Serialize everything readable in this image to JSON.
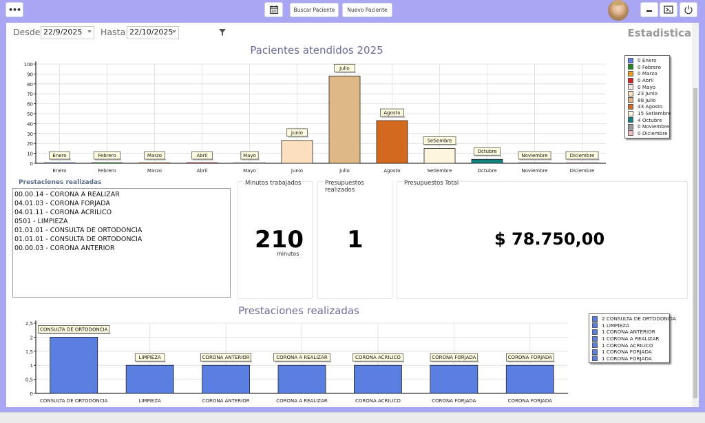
{
  "toolbar": {
    "menu_icon": "more-horizontal-icon",
    "calendar_icon": "calendar-icon",
    "buscar_label": "Buscar Paciente",
    "nuevo_label": "Nuevo Paciente",
    "minimize_icon": "minimize-icon",
    "window_icon": "window-icon",
    "power_icon": "power-icon"
  },
  "filters": {
    "desde_label": "Desde",
    "desde_value": "22/9/2025",
    "hasta_label": "Hasta",
    "hasta_value": "22/10/2025",
    "filter_icon": "filter-icon"
  },
  "page_title": "Estadisticas",
  "panels": {
    "prestaciones_title": "Prestaciones realizadas",
    "prestaciones_list": [
      "00.00.14 - CORONA A REALIZAR",
      "04.01.03 - CORONA FORJADA",
      "04.01.11 - CORONA ACRILICO",
      "0501 - LIMPIEZA",
      "01.01.01 - CONSULTA DE ORTODONCIA",
      "01.01.01 - CONSULTA DE ORTODONCIA",
      "00.00.03 - CORONA ANTERIOR"
    ],
    "minutos_label": "Minutos trabajados",
    "minutos_value": "210",
    "minutos_unit": "minutos",
    "presupuestos_label": "Presupuestos realizados",
    "presupuestos_value": "1",
    "total_label": "Presupuestos Total",
    "total_value": "$ 78.750,00"
  },
  "chart_data": [
    {
      "type": "bar",
      "title": "Pacientes atendidos 2025",
      "categories": [
        "Enero",
        "Febrero",
        "Marzo",
        "Abril",
        "Mayo",
        "Junio",
        "Julio",
        "Agosto",
        "Setiembre",
        "Octubre",
        "Noviembre",
        "Diciembre"
      ],
      "values": [
        0,
        0,
        0,
        0,
        0,
        23,
        88,
        43,
        15,
        4,
        0,
        0
      ],
      "colors": [
        "#5a7fe0",
        "#1a8a1a",
        "#e8a020",
        "#d82020",
        "#fbe8e0",
        "#fde0c0",
        "#deb887",
        "#d2691e",
        "#fdf5dc",
        "#128080",
        "#9a9a9a",
        "#f4b8c0"
      ],
      "ylim": [
        0,
        100
      ],
      "yticks": [
        0,
        10,
        20,
        30,
        40,
        50,
        60,
        70,
        80,
        90,
        100
      ],
      "legend": [
        "0 Enero",
        "0 Febrero",
        "0 Marzo",
        "0 Abril",
        "0 Mayo",
        "23 Junio",
        "88 Julio",
        "43 Agosto",
        "15 Setiembre",
        "4 Octubre",
        "0 Noviembre",
        "0 Diciembre"
      ],
      "legend_position": "right",
      "grid": true
    },
    {
      "type": "bar",
      "title": "Prestaciones realizadas",
      "categories": [
        "CONSULTA DE ORTODONCIA",
        "LIMPIEZA",
        "CORONA ANTERIOR",
        "CORONA A REALIZAR",
        "CORONA ACRILICO",
        "CORONA FORJADA",
        "CORONA FORJADA"
      ],
      "values": [
        2,
        1,
        1,
        1,
        1,
        1,
        1
      ],
      "color": "#5b7fe0",
      "ylim": [
        0,
        2.5
      ],
      "yticks": [
        "0",
        "0,5",
        "1",
        "1,5",
        "2",
        "2,5"
      ],
      "legend": [
        "2 CONSULTA DE ORTODONCIA",
        "1 LIMPIEZA",
        "1 CORONA ANTERIOR",
        "1 CORONA A REALIZAR",
        "1 CORONA ACRILICO",
        "1 CORONA FORJADA",
        "1 CORONA FORJADA"
      ],
      "legend_position": "right",
      "grid": true
    }
  ]
}
